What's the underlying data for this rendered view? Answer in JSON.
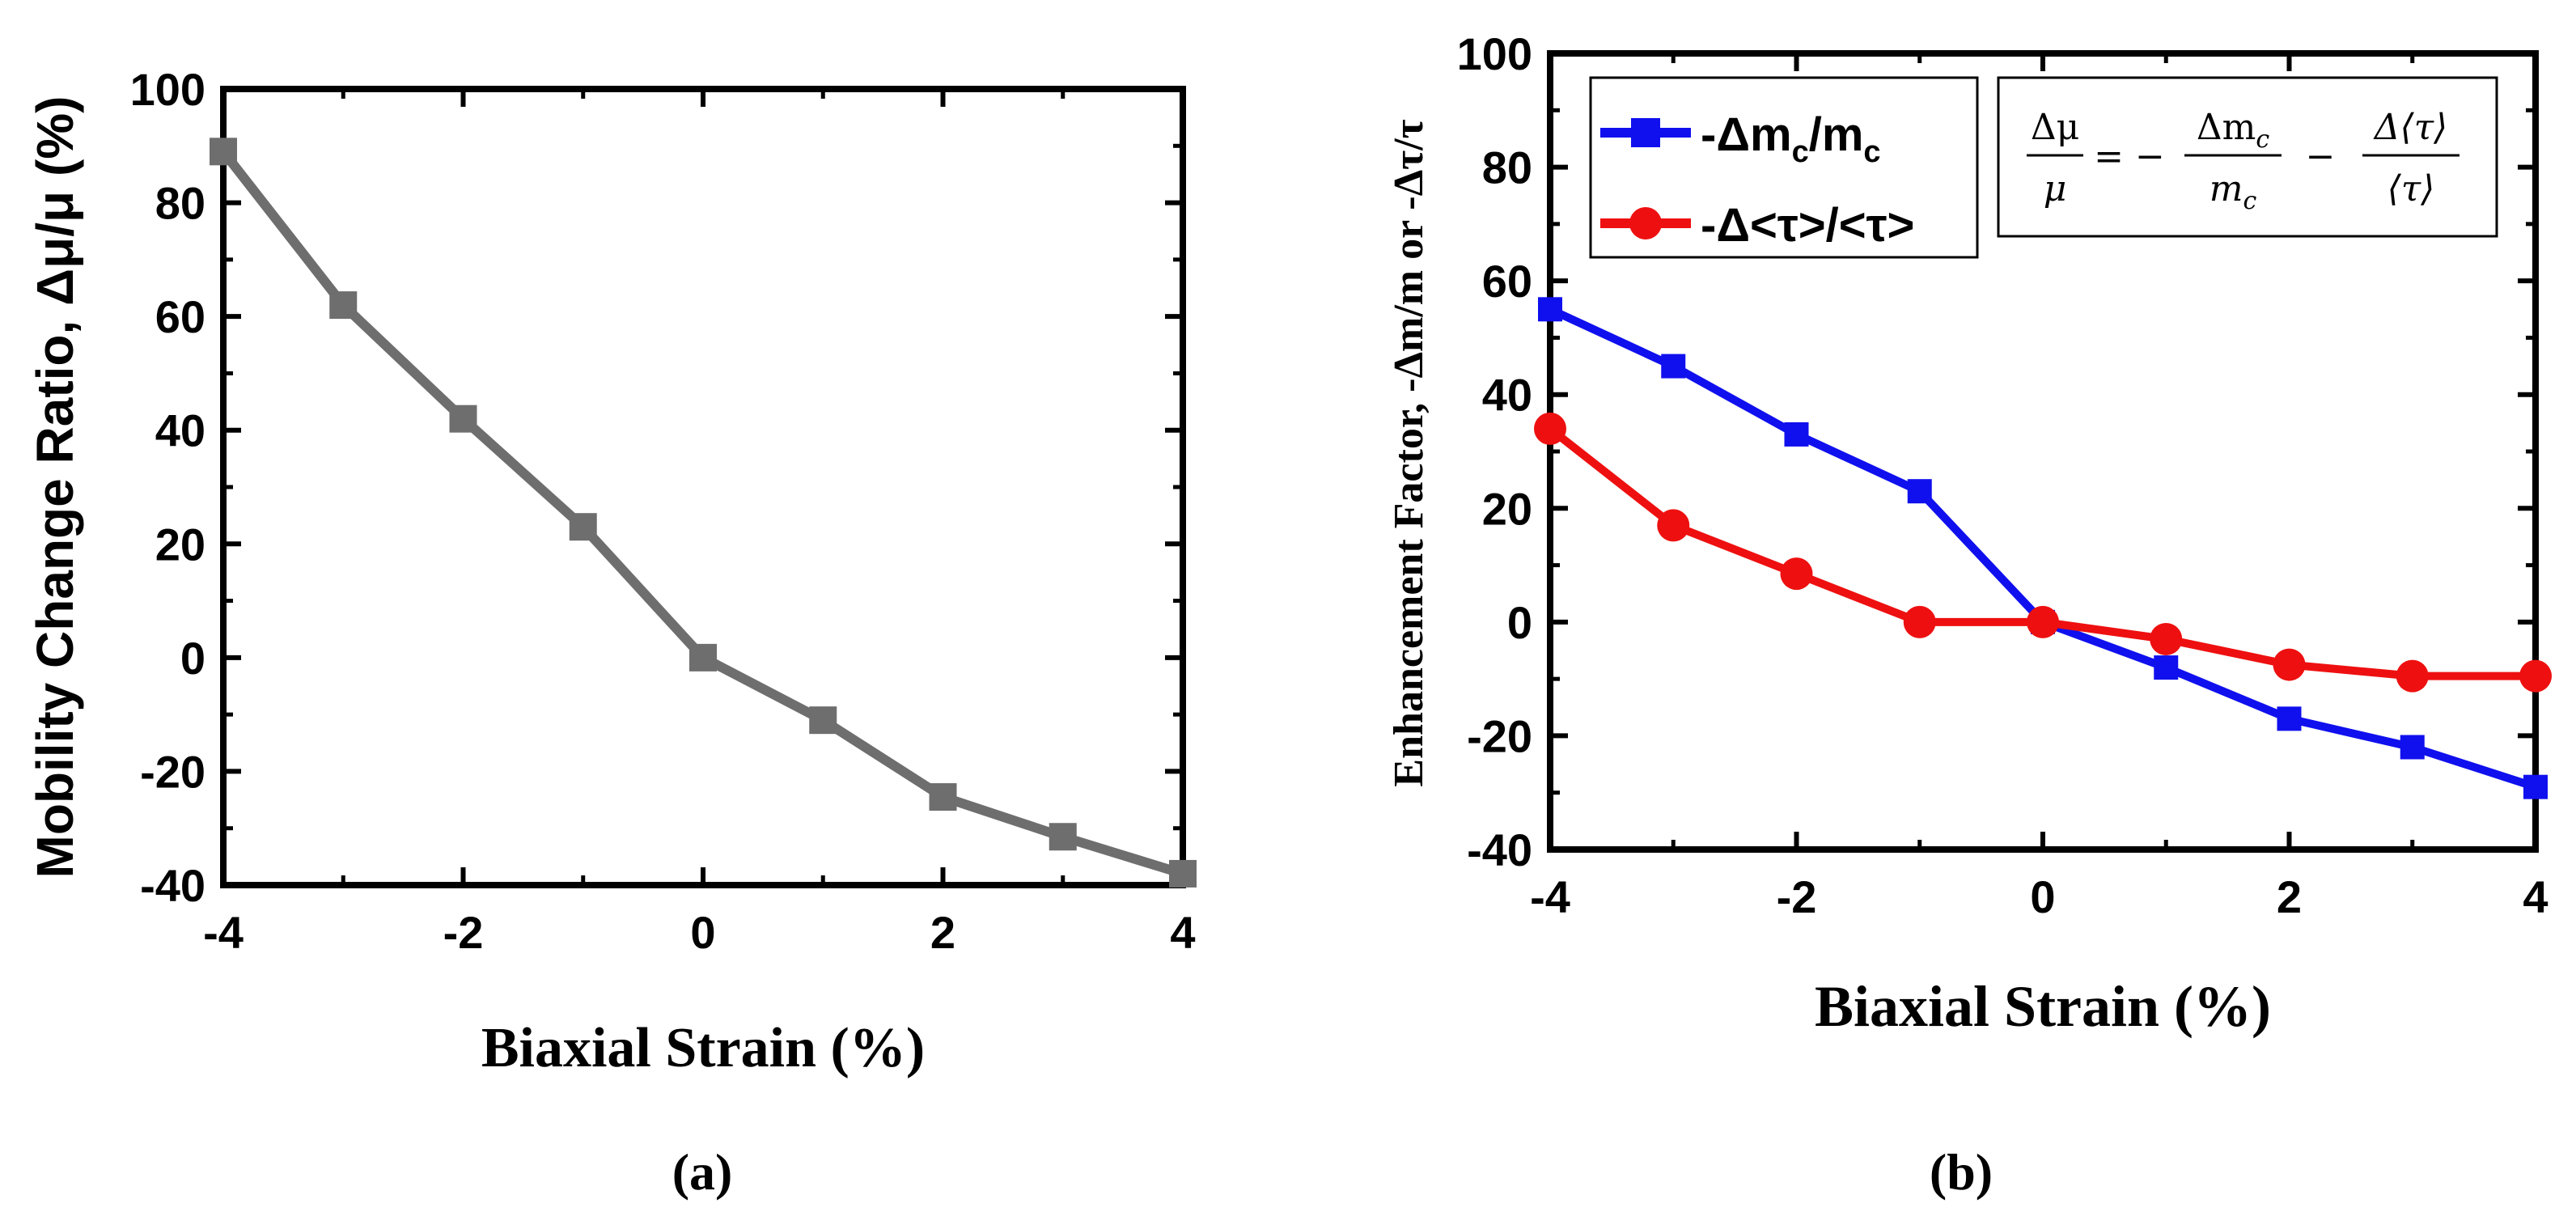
{
  "chart_data": [
    {
      "type": "line",
      "caption": "(a)",
      "xlabel": "Biaxial Strain (%)",
      "ylabel": "Mobility Change Ratio, Δμ/μ (%)",
      "xlim": [
        -4,
        4
      ],
      "ylim": [
        -40,
        100
      ],
      "xticks": [
        -4,
        -2,
        0,
        2,
        4
      ],
      "yticks": [
        -40,
        -20,
        0,
        20,
        40,
        60,
        80,
        100
      ],
      "xtick_labels": [
        "-4",
        "-2",
        "0",
        "2",
        "4"
      ],
      "ytick_labels": [
        "-40",
        "-20",
        "0",
        "20",
        "40",
        "60",
        "80",
        "100"
      ],
      "grid": false,
      "series": [
        {
          "name": "Δμ/μ",
          "color": "#6e6e6e",
          "marker": "square",
          "x": [
            -4,
            -3,
            -2,
            -1,
            0,
            1,
            2,
            3,
            4
          ],
          "values": [
            89,
            62,
            42,
            23,
            0,
            -11,
            -24.5,
            -31.5,
            -38
          ]
        }
      ]
    },
    {
      "type": "line",
      "caption": "(b)",
      "xlabel": "Biaxial Strain (%)",
      "ylabel": "Enhancement Factor, -Δm/m or -Δτ/τ",
      "xlim": [
        -4,
        4
      ],
      "ylim": [
        -40,
        100
      ],
      "xticks": [
        -4,
        -2,
        0,
        2,
        4
      ],
      "yticks": [
        -40,
        -20,
        0,
        20,
        40,
        60,
        80,
        100
      ],
      "xtick_labels": [
        "-4",
        "-2",
        "0",
        "2",
        "4"
      ],
      "ytick_labels": [
        "-40",
        "-20",
        "0",
        "20",
        "40",
        "60",
        "80",
        "100"
      ],
      "grid": false,
      "legend_position": "top-left",
      "series": [
        {
          "name": "-Δmc/mc",
          "legend_main": "-Δm",
          "legend_sub1": "c",
          "legend_mid": "/m",
          "legend_sub2": "c",
          "color": "#1010ee",
          "marker": "square",
          "x": [
            -4,
            -3,
            -2,
            -1,
            0,
            1,
            2,
            3,
            4
          ],
          "values": [
            55,
            45,
            33,
            23,
            0,
            -8,
            -17,
            -22,
            -29
          ]
        },
        {
          "name": "-Δ<τ>/<τ>",
          "legend_main": "-Δ<τ>/<τ>",
          "color": "#ee1010",
          "marker": "circle",
          "x": [
            -4,
            -3,
            -2,
            -1,
            0,
            1,
            2,
            3,
            4
          ],
          "values": [
            34,
            17,
            8.5,
            0,
            0,
            -3,
            -7.5,
            -9.5,
            -9.5
          ]
        }
      ],
      "annotation": {
        "label": "Δμ/μ = − Δmc/mc − Δ⟨τ⟩/⟨τ⟩",
        "lhs_num": "Δμ",
        "lhs_den": "μ",
        "eq": "= −",
        "t1_num_a": "Δm",
        "t1_num_sub": "c",
        "t1_den_a": "m",
        "t1_den_sub": "c",
        "minus": "−",
        "t2_num": "Δ⟨τ⟩",
        "t2_den": "⟨τ⟩"
      }
    }
  ]
}
